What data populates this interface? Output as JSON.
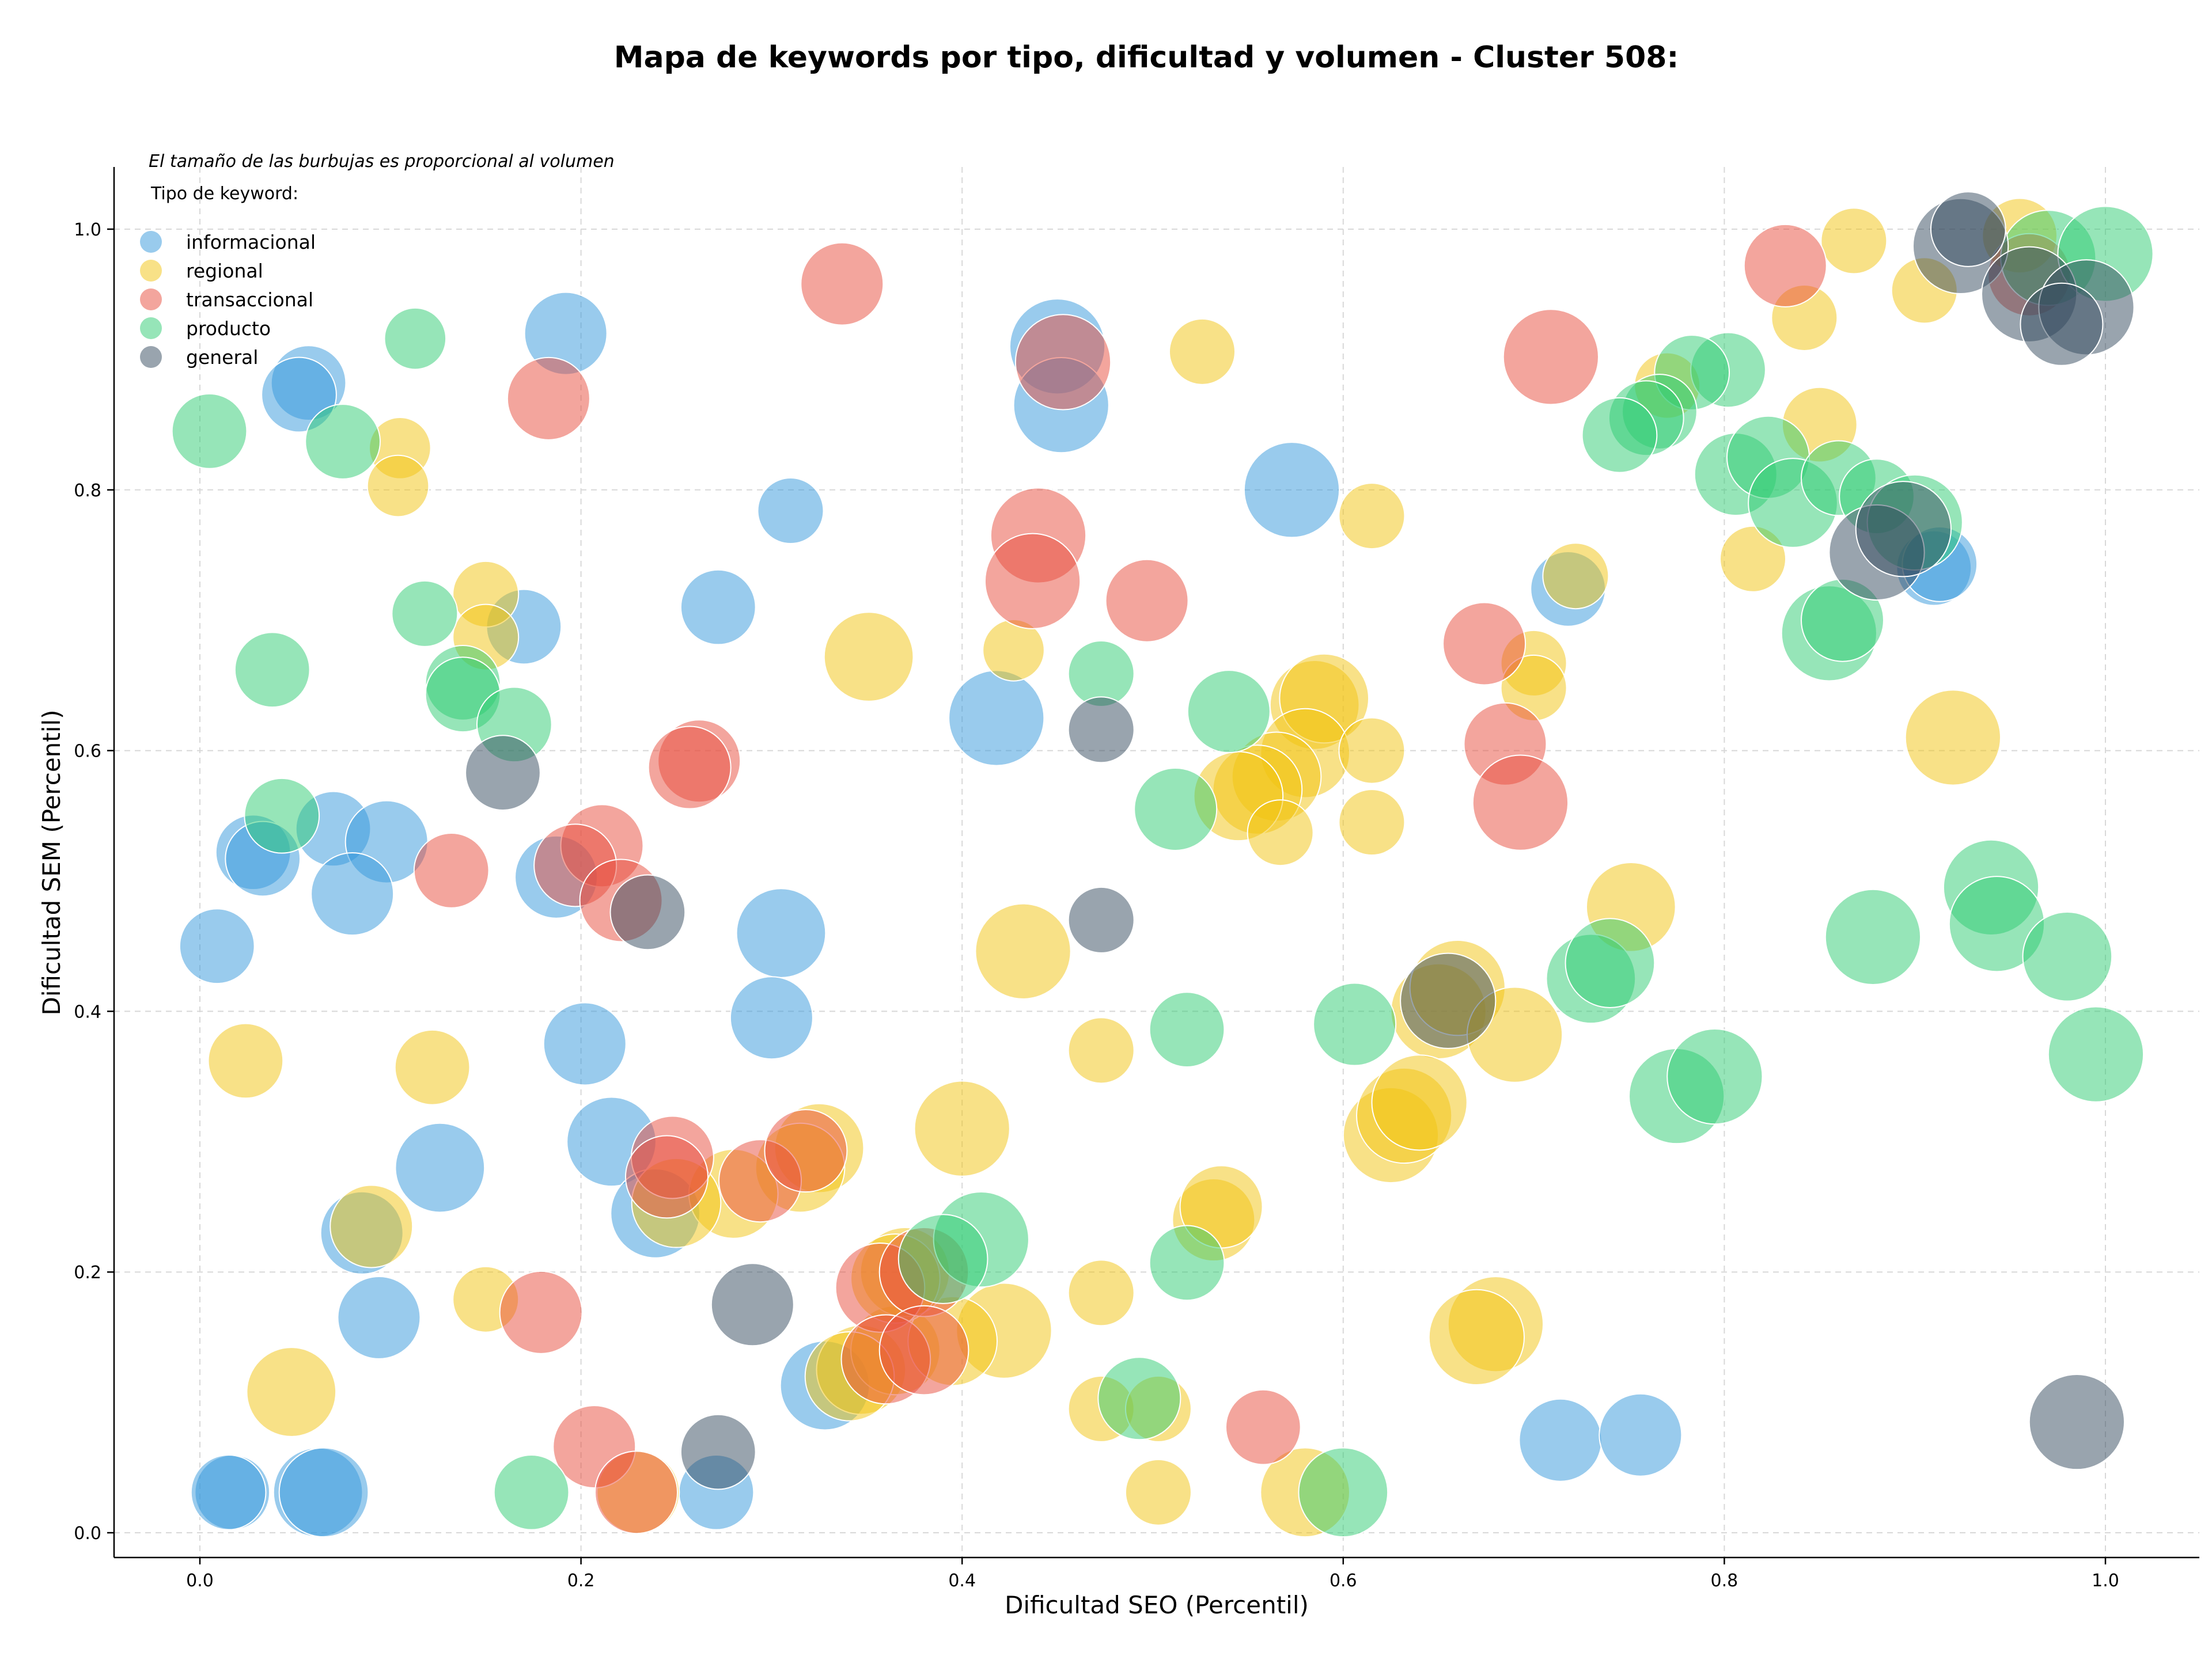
{
  "chart_data": {
    "type": "scatter",
    "title": "Mapa de keywords por tipo, dificultad y volumen - Cluster 508:",
    "xlabel": "Dificultad SEO (Percentil)",
    "ylabel": "Dificultad SEM (Percentil)",
    "xlim": [
      -0.045,
      1.05
    ],
    "ylim": [
      -0.017,
      1.05
    ],
    "x_ticks": [
      "0.0",
      "0.2",
      "0.4",
      "0.6",
      "0.8",
      "1.0"
    ],
    "y_ticks": [
      "0.0",
      "0.2",
      "0.4",
      "0.6",
      "0.8",
      "1.0"
    ],
    "grid": true,
    "legend_placement": "top-left",
    "legend_note": "El tamaño de las burbujas es proporcional al volumen",
    "legend_title": "Tipo de keyword:",
    "series": [
      {
        "name": "informacional",
        "color": "#3498db",
        "points": [
          [
            0.45,
            0.91,
            3
          ],
          [
            0.452,
            0.865,
            3
          ],
          [
            0.573,
            0.8,
            3
          ],
          [
            0.418,
            0.625,
            3
          ],
          [
            0.192,
            0.92,
            2
          ],
          [
            0.057,
            0.882,
            1.5
          ],
          [
            0.052,
            0.873,
            1.5
          ],
          [
            0.31,
            0.784,
            1
          ],
          [
            0.272,
            0.71,
            1.5
          ],
          [
            0.17,
            0.695,
            1.5
          ],
          [
            0.07,
            0.54,
            1.5
          ],
          [
            0.098,
            0.53,
            2
          ],
          [
            0.028,
            0.522,
            1.5
          ],
          [
            0.033,
            0.517,
            1.5
          ],
          [
            0.08,
            0.49,
            2
          ],
          [
            0.187,
            0.503,
            2
          ],
          [
            0.009,
            0.45,
            1.5
          ],
          [
            0.305,
            0.46,
            2.5
          ],
          [
            0.3,
            0.395,
            2
          ],
          [
            0.202,
            0.375,
            2
          ],
          [
            0.126,
            0.28,
            2.5
          ],
          [
            0.216,
            0.3,
            2.5
          ],
          [
            0.239,
            0.245,
            2.5
          ],
          [
            0.085,
            0.23,
            2
          ],
          [
            0.094,
            0.165,
            2
          ],
          [
            0.017,
            0.031,
            1.5
          ],
          [
            0.015,
            0.031,
            1.5
          ],
          [
            0.062,
            0.031,
            2.5
          ],
          [
            0.065,
            0.031,
            2.5
          ],
          [
            0.271,
            0.031,
            1.5
          ],
          [
            0.328,
            0.113,
            2.5
          ],
          [
            0.714,
            0.071,
            2
          ],
          [
            0.756,
            0.075,
            2
          ],
          [
            0.718,
            0.724,
            1.5
          ],
          [
            0.91,
            0.74,
            1.5
          ],
          [
            0.913,
            0.743,
            1.5
          ]
        ]
      },
      {
        "name": "regional",
        "color": "#f1c40f",
        "points": [
          [
            0.868,
            0.991,
            1
          ],
          [
            0.955,
            0.995,
            1.5
          ],
          [
            0.905,
            0.953,
            1
          ],
          [
            0.842,
            0.932,
            1
          ],
          [
            0.526,
            0.906,
            1
          ],
          [
            0.77,
            0.88,
            1
          ],
          [
            0.85,
            0.85,
            1.5
          ],
          [
            0.105,
            0.832,
            0.8
          ],
          [
            0.104,
            0.803,
            0.8
          ],
          [
            0.615,
            0.78,
            1
          ],
          [
            0.815,
            0.747,
            1
          ],
          [
            0.722,
            0.734,
            1
          ],
          [
            0.15,
            0.72,
            1
          ],
          [
            0.15,
            0.687,
            1
          ],
          [
            0.351,
            0.672,
            2.5
          ],
          [
            0.427,
            0.677,
            0.8
          ],
          [
            0.7,
            0.667,
            1
          ],
          [
            0.7,
            0.648,
            1
          ],
          [
            0.585,
            0.635,
            2.5
          ],
          [
            0.59,
            0.64,
            2.5
          ],
          [
            0.58,
            0.598,
            2.5
          ],
          [
            0.615,
            0.6,
            1
          ],
          [
            0.565,
            0.58,
            2.5
          ],
          [
            0.555,
            0.57,
            2.5
          ],
          [
            0.545,
            0.565,
            2.5
          ],
          [
            0.92,
            0.61,
            3
          ],
          [
            0.567,
            0.537,
            1
          ],
          [
            0.615,
            0.545,
            1
          ],
          [
            0.432,
            0.446,
            3
          ],
          [
            0.751,
            0.48,
            2.5
          ],
          [
            0.65,
            0.4,
            3
          ],
          [
            0.66,
            0.418,
            3
          ],
          [
            0.69,
            0.382,
            3
          ],
          [
            0.024,
            0.362,
            1.5
          ],
          [
            0.122,
            0.357,
            1.5
          ],
          [
            0.473,
            0.37,
            1
          ],
          [
            0.625,
            0.305,
            3
          ],
          [
            0.632,
            0.32,
            3
          ],
          [
            0.64,
            0.33,
            3
          ],
          [
            0.4,
            0.31,
            3
          ],
          [
            0.325,
            0.295,
            2.5
          ],
          [
            0.315,
            0.28,
            2.5
          ],
          [
            0.28,
            0.26,
            2.5
          ],
          [
            0.25,
            0.253,
            2.5
          ],
          [
            0.09,
            0.235,
            2
          ],
          [
            0.532,
            0.24,
            2
          ],
          [
            0.536,
            0.25,
            2
          ],
          [
            0.15,
            0.179,
            1
          ],
          [
            0.473,
            0.184,
            1
          ],
          [
            0.422,
            0.155,
            3
          ],
          [
            0.68,
            0.16,
            3
          ],
          [
            0.67,
            0.15,
            3
          ],
          [
            0.048,
            0.108,
            2.5
          ],
          [
            0.473,
            0.095,
            1
          ],
          [
            0.503,
            0.095,
            1
          ],
          [
            0.347,
            0.125,
            2.5
          ],
          [
            0.365,
            0.14,
            2.5
          ],
          [
            0.395,
            0.147,
            2.5
          ],
          [
            0.37,
            0.2,
            2.5
          ],
          [
            0.365,
            0.195,
            2.5
          ],
          [
            0.23,
            0.031,
            2
          ],
          [
            0.503,
            0.031,
            1
          ],
          [
            0.58,
            0.031,
            2.5
          ],
          [
            0.341,
            0.12,
            2.5
          ]
        ]
      },
      {
        "name": "transaccional",
        "color": "#e74c3c",
        "points": [
          [
            0.337,
            0.958,
            2
          ],
          [
            0.832,
            0.972,
            2
          ],
          [
            0.453,
            0.898,
            3
          ],
          [
            0.709,
            0.902,
            3
          ],
          [
            0.183,
            0.87,
            2
          ],
          [
            0.44,
            0.765,
            3
          ],
          [
            0.437,
            0.73,
            3
          ],
          [
            0.497,
            0.715,
            2
          ],
          [
            0.674,
            0.682,
            2
          ],
          [
            0.685,
            0.605,
            2
          ],
          [
            0.693,
            0.56,
            3
          ],
          [
            0.262,
            0.592,
            2
          ],
          [
            0.257,
            0.587,
            2
          ],
          [
            0.211,
            0.527,
            2
          ],
          [
            0.197,
            0.512,
            2
          ],
          [
            0.132,
            0.508,
            1.5
          ],
          [
            0.221,
            0.485,
            2
          ],
          [
            0.248,
            0.288,
            2
          ],
          [
            0.245,
            0.273,
            2
          ],
          [
            0.294,
            0.27,
            2
          ],
          [
            0.318,
            0.293,
            2
          ],
          [
            0.357,
            0.188,
            2.5
          ],
          [
            0.38,
            0.2,
            2.5
          ],
          [
            0.36,
            0.133,
            2.5
          ],
          [
            0.38,
            0.14,
            2.5
          ],
          [
            0.179,
            0.169,
            2
          ],
          [
            0.207,
            0.066,
            2
          ],
          [
            0.229,
            0.031,
            2
          ],
          [
            0.558,
            0.081,
            1.5
          ],
          [
            0.96,
            0.965,
            2
          ]
        ]
      },
      {
        "name": "producto",
        "color": "#2ecc71",
        "points": [
          [
            0.113,
            0.916,
            0.8
          ],
          [
            0.005,
            0.845,
            1.5
          ],
          [
            0.075,
            0.837,
            1.5
          ],
          [
            0.802,
            0.892,
            1.5
          ],
          [
            0.783,
            0.89,
            1.5
          ],
          [
            0.766,
            0.86,
            1.5
          ],
          [
            0.759,
            0.855,
            1.5
          ],
          [
            0.745,
            0.842,
            1.5
          ],
          [
            0.806,
            0.812,
            2
          ],
          [
            0.823,
            0.825,
            2
          ],
          [
            0.836,
            0.79,
            2.5
          ],
          [
            0.86,
            0.809,
            1.5
          ],
          [
            0.88,
            0.795,
            1.5
          ],
          [
            0.9,
            0.775,
            3
          ],
          [
            0.855,
            0.69,
            3
          ],
          [
            0.862,
            0.7,
            2
          ],
          [
            0.97,
            0.978,
            3
          ],
          [
            1.0,
            0.981,
            3
          ],
          [
            0.94,
            0.495,
            3
          ],
          [
            0.943,
            0.467,
            3
          ],
          [
            0.878,
            0.457,
            3
          ],
          [
            0.98,
            0.442,
            2.5
          ],
          [
            0.995,
            0.367,
            3
          ],
          [
            0.73,
            0.425,
            2.5
          ],
          [
            0.74,
            0.437,
            2.5
          ],
          [
            0.775,
            0.335,
            3
          ],
          [
            0.795,
            0.35,
            3
          ],
          [
            0.118,
            0.705,
            1
          ],
          [
            0.038,
            0.662,
            1.5
          ],
          [
            0.138,
            0.652,
            1.5
          ],
          [
            0.138,
            0.643,
            1.5
          ],
          [
            0.165,
            0.62,
            1.5
          ],
          [
            0.043,
            0.55,
            1.5
          ],
          [
            0.473,
            0.659,
            1
          ],
          [
            0.54,
            0.63,
            2
          ],
          [
            0.512,
            0.555,
            2
          ],
          [
            0.606,
            0.39,
            2
          ],
          [
            0.518,
            0.386,
            1.5
          ],
          [
            0.518,
            0.207,
            1.5
          ],
          [
            0.41,
            0.225,
            3
          ],
          [
            0.39,
            0.21,
            2.5
          ],
          [
            0.493,
            0.103,
            2
          ],
          [
            0.174,
            0.031,
            1.5
          ],
          [
            0.6,
            0.031,
            2.5
          ]
        ]
      },
      {
        "name": "general",
        "color": "#34495e",
        "points": [
          [
            0.924,
            0.987,
            3
          ],
          [
            0.928,
            1.0,
            1.5
          ],
          [
            0.96,
            0.95,
            3
          ],
          [
            0.99,
            0.94,
            3
          ],
          [
            0.977,
            0.927,
            2
          ],
          [
            0.88,
            0.752,
            3
          ],
          [
            0.894,
            0.77,
            3
          ],
          [
            0.159,
            0.583,
            1.5
          ],
          [
            0.473,
            0.616,
            1
          ],
          [
            0.235,
            0.476,
            1.5
          ],
          [
            0.473,
            0.47,
            1
          ],
          [
            0.655,
            0.408,
            3
          ],
          [
            0.29,
            0.175,
            2
          ],
          [
            0.272,
            0.062,
            1.5
          ],
          [
            0.985,
            0.085,
            3
          ]
        ]
      }
    ]
  }
}
